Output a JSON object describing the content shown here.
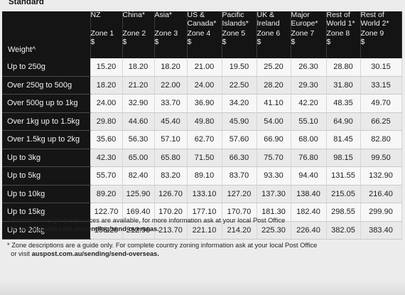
{
  "section_title": "Standard",
  "weight_header": "Weight^",
  "zones": [
    {
      "name": "NZ",
      "zone": "Zone 1",
      "currency": "$"
    },
    {
      "name": "China*",
      "zone": "Zone 2",
      "currency": "$"
    },
    {
      "name": "Asia*",
      "zone": "Zone 3",
      "currency": "$"
    },
    {
      "name": "US & Canada*",
      "zone": "Zone 4",
      "currency": "$"
    },
    {
      "name": "Pacific Islands*",
      "zone": "Zone 5",
      "currency": "$"
    },
    {
      "name": "UK & Ireland",
      "zone": "Zone 6",
      "currency": "$"
    },
    {
      "name": "Major Europe*",
      "zone": "Zone 7",
      "currency": "$"
    },
    {
      "name": "Rest of World 1*",
      "zone": "Zone 8",
      "currency": "$"
    },
    {
      "name": "Rest of World 2*",
      "zone": "Zone 9",
      "currency": "$"
    }
  ],
  "rows": [
    {
      "weight": "Up to 250g",
      "prices": [
        "15.20",
        "18.20",
        "18.20",
        "21.00",
        "19.50",
        "25.20",
        "26.30",
        "28.80",
        "30.15"
      ]
    },
    {
      "weight": "Over 250g to 500g",
      "prices": [
        "18.20",
        "21.20",
        "22.00",
        "24.00",
        "22.50",
        "28.20",
        "29.30",
        "31.80",
        "33.15"
      ]
    },
    {
      "weight": "Over 500g up to 1kg",
      "prices": [
        "24.00",
        "32.90",
        "33.70",
        "36.90",
        "34.20",
        "41.10",
        "42.20",
        "48.35",
        "49.70"
      ]
    },
    {
      "weight": "Over 1kg up to 1.5kg",
      "prices": [
        "29.80",
        "44.60",
        "45.40",
        "49.80",
        "45.90",
        "54.00",
        "55.10",
        "64.90",
        "66.25"
      ]
    },
    {
      "weight": "Over 1.5kg up to 2kg",
      "prices": [
        "35.60",
        "56.30",
        "57.10",
        "62.70",
        "57.60",
        "66.90",
        "68.00",
        "81.45",
        "82.80"
      ]
    },
    {
      "weight": "Up to 3kg",
      "prices": [
        "42.30",
        "65.00",
        "65.80",
        "71.50",
        "66.30",
        "75.70",
        "76.80",
        "98.15",
        "99.50"
      ]
    },
    {
      "weight": "Up to 5kg",
      "prices": [
        "55.70",
        "82.40",
        "83.20",
        "89.10",
        "83.70",
        "93.30",
        "94.40",
        "131.55",
        "132.90"
      ]
    },
    {
      "weight": "Up to 10kg",
      "prices": [
        "89.20",
        "125.90",
        "126.70",
        "133.10",
        "127.20",
        "137.30",
        "138.40",
        "215.05",
        "216.40"
      ]
    },
    {
      "weight": "Up to 15kg",
      "prices": [
        "122.70",
        "169.40",
        "170.20",
        "177.10",
        "170.70",
        "181.30",
        "182.40",
        "298.55",
        "299.90"
      ]
    },
    {
      "weight": "Up to 20kg",
      "prices": [
        "156.20",
        "212.90",
        "213.70",
        "221.10",
        "214.20",
        "225.30",
        "226.40",
        "382.05",
        "383.40"
      ]
    }
  ],
  "footnotes": [
    {
      "marker": "^",
      "text": "Additional weight break prices are available, for more information ask at your local Post Office",
      "line2_prefix": "or visit",
      "link": "auspost.com.au/sending/send-overseas."
    },
    {
      "marker": "*",
      "text": "Zone descriptions are a guide only. For complete country zoning information ask at your local Post Office",
      "line2_prefix": "or visit",
      "link": "auspost.com.au/sending/send-overseas."
    }
  ]
}
